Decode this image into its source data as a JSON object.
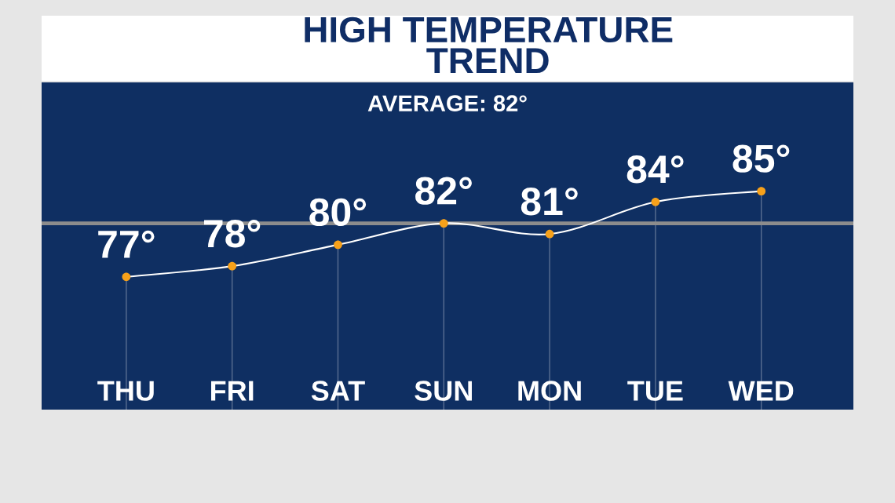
{
  "chart_data": {
    "type": "line",
    "title": "HIGH TEMPERATURE\nTREND",
    "categories": [
      "THU",
      "FRI",
      "SAT",
      "SUN",
      "MON",
      "TUE",
      "WED"
    ],
    "series": [
      {
        "color": "#ffffff",
        "values": [
          77,
          78,
          80,
          82,
          81,
          84,
          85
        ],
        "value_labels": [
          "77°",
          "78°",
          "80°",
          "82°",
          "81°",
          "84°",
          "85°"
        ]
      },
      {
        "type": "scatter",
        "marker": "circle",
        "color": "#f7a11a",
        "values": [
          77,
          78,
          80,
          82,
          81,
          84,
          85
        ]
      }
    ],
    "ref_lines": [
      {
        "axis": "y",
        "value": 82,
        "color": "#8c8c8c"
      }
    ],
    "annotations": [
      "AVERAGE: 82°"
    ],
    "grid": "x",
    "legend": false,
    "tick_labels": "x"
  }
}
